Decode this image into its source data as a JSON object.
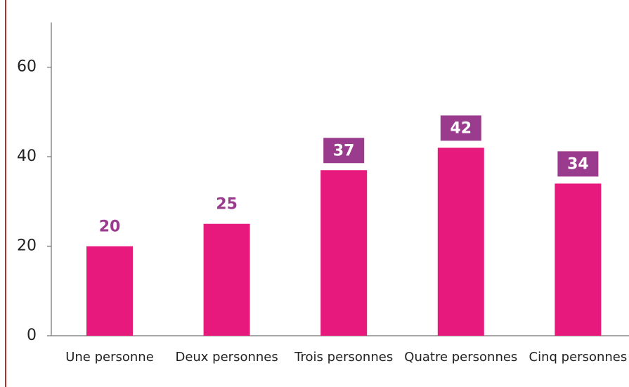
{
  "chart_data": {
    "type": "bar",
    "categories": [
      "Une personne",
      "Deux personnes",
      "Trois personnes",
      "Quatre personnes",
      "Cinq personnes"
    ],
    "values": [
      20,
      25,
      37,
      42,
      34
    ],
    "color": "#e8197d",
    "label_color": "#9a3b8e",
    "value_label_boxed": [
      false,
      false,
      true,
      true,
      true
    ],
    "ylim": [
      0,
      70
    ],
    "yticks": [
      0,
      20,
      40,
      60
    ],
    "grid": false
  }
}
